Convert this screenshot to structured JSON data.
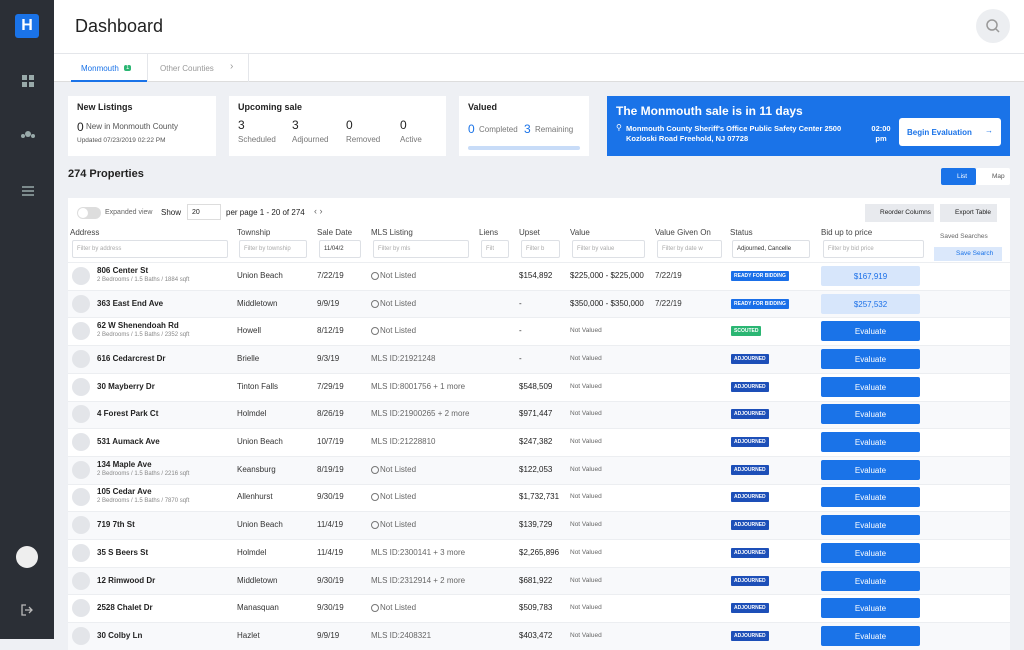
{
  "logo": "H",
  "header": {
    "title": "Dashboard"
  },
  "tabs": [
    {
      "label": "Monmouth",
      "badge": "1"
    },
    {
      "label": "Other Counties"
    }
  ],
  "cards": {
    "new_listings": {
      "title": "New Listings",
      "count": "0",
      "text": "New in Monmouth County",
      "updated": "Updated 07/23/2019 02:22 PM"
    },
    "upcoming": {
      "title": "Upcoming sale",
      "stats": [
        {
          "value": "3",
          "label": "Scheduled"
        },
        {
          "value": "3",
          "label": "Adjourned"
        },
        {
          "value": "0",
          "label": "Removed"
        },
        {
          "value": "0",
          "label": "Active"
        }
      ]
    },
    "valued": {
      "title": "Valued",
      "stats": [
        {
          "value": "0",
          "label": "Completed"
        },
        {
          "value": "3",
          "label": "Remaining"
        }
      ]
    },
    "banner": {
      "title": "The Monmouth sale is in 11 days",
      "address": "Monmouth County Sheriff's Office Public Safety Center 2500 Kozloski Road Freehold, NJ 07728",
      "time": "02:00 pm",
      "button": "Begin Evaluation"
    }
  },
  "properties": {
    "title": "274 Properties",
    "views": [
      "List",
      "Map"
    ]
  },
  "toolbar": {
    "expanded": "Expanded view",
    "show": "Show",
    "per_page": "20",
    "paging": "per page 1 - 20 of 274",
    "reorder": "Reorder Columns",
    "export": "Export Table",
    "saved": "Saved Searches",
    "save": "Save Search"
  },
  "table": {
    "columns": [
      {
        "label": "Address",
        "filter": "Filter by address"
      },
      {
        "label": "Township",
        "filter": "Filter by township"
      },
      {
        "label": "Sale Date",
        "filter": "11/04/2"
      },
      {
        "label": "MLS Listing",
        "filter": "Filter by mls"
      },
      {
        "label": "Liens",
        "filter": "Filt"
      },
      {
        "label": "Upset",
        "filter": "Filter b"
      },
      {
        "label": "Value",
        "filter": "Filter by value"
      },
      {
        "label": "Value Given On",
        "filter": "Filter by date w"
      },
      {
        "label": "Status",
        "filter": "Adjourned, Cancelle"
      },
      {
        "label": "Bid up to price",
        "filter": "Filter by bid price"
      }
    ],
    "rows": [
      {
        "address": "806 Center St",
        "details": "2 Bedrooms / 1.5 Baths / 1884 sqft",
        "township": "Union Beach",
        "sale_date": "7/22/19",
        "mls": "Not Listed",
        "upset": "$154,892",
        "value": "$225,000 - $225,000",
        "value_given_on": "7/22/19",
        "status": "READY FOR BIDDING",
        "bid": "$167,919"
      },
      {
        "address": "363 East End Ave",
        "township": "Middletown",
        "sale_date": "9/9/19",
        "mls": "Not Listed",
        "upset": "-",
        "value": "$350,000 - $350,000",
        "value_given_on": "7/22/19",
        "status": "READY FOR BIDDING",
        "bid": "$257,532"
      },
      {
        "address": "62 W Shenendoah Rd",
        "details": "2 Bedrooms / 1.5 Baths / 2352 sqft",
        "township": "Howell",
        "sale_date": "8/12/19",
        "mls": "Not Listed",
        "upset": "-",
        "value": "Not Valued",
        "status": "SCOUTED",
        "bid": "Evaluate"
      },
      {
        "address": "616 Cedarcrest Dr",
        "township": "Brielle",
        "sale_date": "9/3/19",
        "mls": "MLS ID:21921248",
        "upset": "-",
        "value": "Not Valued",
        "status": "ADJOURNED",
        "bid": "Evaluate"
      },
      {
        "address": "30 Mayberry Dr",
        "township": "Tinton Falls",
        "sale_date": "7/29/19",
        "mls": "MLS ID:8001756 + 1 more",
        "upset": "$548,509",
        "value": "Not Valued",
        "status": "ADJOURNED",
        "bid": "Evaluate"
      },
      {
        "address": "4 Forest Park Ct",
        "township": "Holmdel",
        "sale_date": "8/26/19",
        "mls": "MLS ID:21900265 + 2 more",
        "upset": "$971,447",
        "value": "Not Valued",
        "status": "ADJOURNED",
        "bid": "Evaluate"
      },
      {
        "address": "531 Aumack Ave",
        "township": "Union Beach",
        "sale_date": "10/7/19",
        "mls": "MLS ID:21228810",
        "upset": "$247,382",
        "value": "Not Valued",
        "status": "ADJOURNED",
        "bid": "Evaluate"
      },
      {
        "address": "134 Maple Ave",
        "details": "2 Bedrooms / 1.5 Baths / 2216 sqft",
        "township": "Keansburg",
        "sale_date": "8/19/19",
        "mls": "Not Listed",
        "upset": "$122,053",
        "value": "Not Valued",
        "status": "ADJOURNED",
        "bid": "Evaluate"
      },
      {
        "address": "105 Cedar Ave",
        "details": "2 Bedrooms / 1.5 Baths / 7870 sqft",
        "township": "Allenhurst",
        "sale_date": "9/30/19",
        "mls": "Not Listed",
        "upset": "$1,732,731",
        "value": "Not Valued",
        "status": "ADJOURNED",
        "bid": "Evaluate"
      },
      {
        "address": "719 7th St",
        "township": "Union Beach",
        "sale_date": "11/4/19",
        "mls": "Not Listed",
        "upset": "$139,729",
        "value": "Not Valued",
        "status": "ADJOURNED",
        "bid": "Evaluate"
      },
      {
        "address": "35 S Beers St",
        "township": "Holmdel",
        "sale_date": "11/4/19",
        "mls": "MLS ID:2300141 + 3 more",
        "upset": "$2,265,896",
        "value": "Not Valued",
        "status": "ADJOURNED",
        "bid": "Evaluate"
      },
      {
        "address": "12 Rimwood Dr",
        "township": "Middletown",
        "sale_date": "9/30/19",
        "mls": "MLS ID:2312914 + 2 more",
        "upset": "$681,922",
        "value": "Not Valued",
        "status": "ADJOURNED",
        "bid": "Evaluate"
      },
      {
        "address": "2528 Chalet Dr",
        "township": "Manasquan",
        "sale_date": "9/30/19",
        "mls": "Not Listed",
        "upset": "$509,783",
        "value": "Not Valued",
        "status": "ADJOURNED",
        "bid": "Evaluate"
      },
      {
        "address": "30 Colby Ln",
        "township": "Hazlet",
        "sale_date": "9/9/19",
        "mls": "MLS ID:2408321",
        "upset": "$403,472",
        "value": "Not Valued",
        "status": "ADJOURNED",
        "bid": "Evaluate"
      }
    ]
  }
}
